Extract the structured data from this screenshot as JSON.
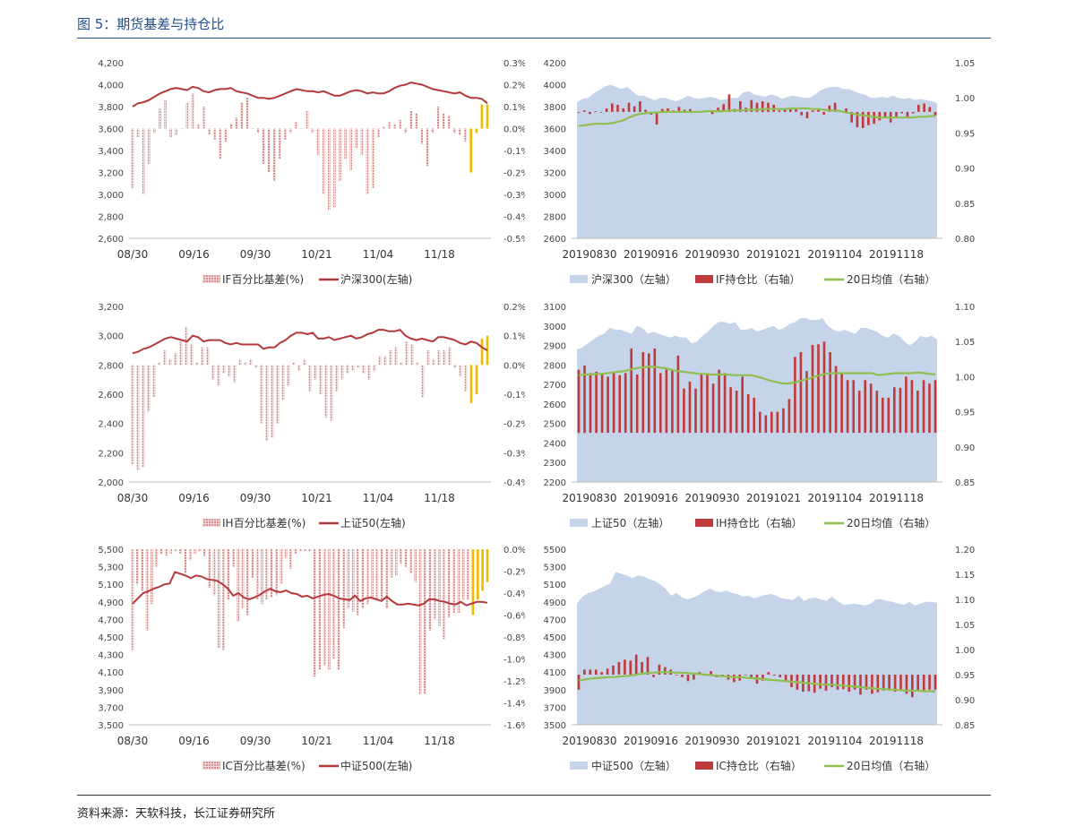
{
  "header": {
    "title": "图 5：期货基差与持仓比"
  },
  "footer": {
    "source": "资料来源：天软科技，长江证券研究所"
  },
  "colors": {
    "basis_bar": "#d98c8c",
    "basis_bar_recent": "#f2b900",
    "index_line": "#b5393a",
    "area": "#c5d4e8",
    "ratio_bar": "#c0393b",
    "ma_line": "#8fbf4f"
  },
  "chart_data": [
    {
      "id": "if-basis",
      "type": "bar+line",
      "x_ticks": [
        "08/30",
        "09/16",
        "09/30",
        "10/21",
        "11/04",
        "11/18"
      ],
      "ylim_left": [
        2600,
        4200
      ],
      "yticks_left": [
        "2,600",
        "2,800",
        "3,000",
        "3,200",
        "3,400",
        "3,600",
        "3,800",
        "4,000",
        "4,200"
      ],
      "ylim_right": [
        -0.5,
        0.3
      ],
      "yticks_right": [
        "-0.5%",
        "-0.4%",
        "-0.3%",
        "-0.2%",
        "-0.1%",
        "0.0%",
        "0.1%",
        "0.2%",
        "0.3%"
      ],
      "legend": [
        "IF百分比基差(%)",
        "沪深300(左轴)"
      ],
      "basis": [
        -0.27,
        -0.04,
        -0.3,
        -0.16,
        -0.02,
        0.09,
        0.13,
        -0.04,
        -0.03,
        0,
        0.12,
        0.16,
        0.02,
        0.1,
        -0.03,
        -0.05,
        -0.14,
        -0.06,
        0.02,
        0.05,
        0.12,
        0.14,
        0,
        -0.02,
        -0.16,
        -0.2,
        -0.24,
        -0.14,
        -0.05,
        -0.02,
        0.03,
        0,
        0.08,
        -0.02,
        -0.12,
        -0.3,
        -0.37,
        -0.36,
        -0.24,
        -0.14,
        -0.19,
        -0.09,
        -0.12,
        -0.3,
        -0.27,
        -0.04,
        0.01,
        0.03,
        0.02,
        0.04,
        -0.02,
        0.08,
        0.07,
        -0.07,
        -0.17,
        -0.02,
        0.1,
        0.07,
        0.06,
        -0.02,
        -0.03,
        -0.06,
        -0.2,
        -0.02,
        0.11,
        0.11
      ],
      "index": [
        3800,
        3830,
        3840,
        3860,
        3890,
        3920,
        3940,
        3960,
        3970,
        3960,
        3950,
        3980,
        3970,
        3940,
        3930,
        3950,
        3960,
        3960,
        3970,
        3940,
        3930,
        3920,
        3900,
        3880,
        3880,
        3870,
        3880,
        3900,
        3920,
        3940,
        3960,
        3950,
        3940,
        3940,
        3930,
        3940,
        3920,
        3900,
        3900,
        3920,
        3940,
        3950,
        3940,
        3920,
        3930,
        3920,
        3920,
        3940,
        3970,
        3990,
        4000,
        4020,
        4010,
        4000,
        3980,
        3960,
        3950,
        3940,
        3930,
        3920,
        3930,
        3900,
        3880,
        3880,
        3870,
        3830
      ]
    },
    {
      "id": "if-ratio",
      "type": "area+bar+line",
      "x_ticks": [
        "20190830",
        "20190916",
        "20190930",
        "20191021",
        "20191104",
        "20191118"
      ],
      "ylim_left": [
        2600,
        4200
      ],
      "yticks_left": [
        "2600",
        "2800",
        "3000",
        "3200",
        "3400",
        "3600",
        "3800",
        "4000",
        "4200"
      ],
      "ylim_right": [
        0.8,
        1.05
      ],
      "yticks_right": [
        "0.80",
        "0.85",
        "0.90",
        "0.95",
        "1.00",
        "1.05"
      ],
      "legend": [
        "沪深300（左轴）",
        "IF持仓比（右轴）",
        "20日均值（右轴）"
      ],
      "baseline": 0.98,
      "area": [
        3840,
        3870,
        3880,
        3920,
        3950,
        3980,
        4000,
        3980,
        3960,
        3980,
        3940,
        3900,
        3900,
        3880,
        3860,
        3880,
        3880,
        3860,
        3850,
        3870,
        3900,
        3880,
        3870,
        3880,
        3890,
        3880,
        3860,
        3870,
        3880,
        3880,
        3930,
        3940,
        3910,
        3900,
        3890,
        3910,
        3900,
        3870,
        3890,
        3900,
        3890,
        3880,
        3880,
        3910,
        3950,
        3970,
        3980,
        3980,
        3960,
        3960,
        3940,
        3920,
        3910,
        3880,
        3880,
        3890,
        3880,
        3900,
        3880,
        3870,
        3880,
        3860,
        3870,
        3860,
        3850,
        3830
      ],
      "ratio": [
        0.98,
        0.982,
        0.977,
        0.981,
        0.979,
        0.985,
        0.992,
        0.99,
        0.985,
        0.993,
        0.988,
        0.995,
        0.983,
        0.976,
        0.962,
        0.984,
        0.985,
        0.982,
        0.987,
        0.983,
        0.984,
        0.979,
        0.981,
        0.982,
        0.977,
        0.986,
        0.991,
        1.005,
        0.984,
        0.995,
        0.986,
        0.997,
        0.993,
        0.995,
        0.993,
        0.99,
        0.982,
        0.983,
        0.985,
        0.984,
        0.975,
        0.971,
        0.982,
        0.984,
        0.976,
        0.989,
        0.993,
        0.982,
        0.985,
        0.965,
        0.958,
        0.957,
        0.961,
        0.963,
        0.968,
        0.971,
        0.965,
        0.973,
        0.978,
        0.971,
        0.978,
        0.99,
        0.992,
        0.987,
        0.975
      ],
      "ma": [
        0.96,
        0.961,
        0.962,
        0.963,
        0.963,
        0.963,
        0.964,
        0.966,
        0.968,
        0.972,
        0.975,
        0.977,
        0.978,
        0.979,
        0.979,
        0.98,
        0.98,
        0.98,
        0.98,
        0.98,
        0.98,
        0.98,
        0.98,
        0.981,
        0.981,
        0.981,
        0.981,
        0.982,
        0.982,
        0.982,
        0.983,
        0.983,
        0.983,
        0.984,
        0.984,
        0.984,
        0.984,
        0.984,
        0.985,
        0.985,
        0.985,
        0.985,
        0.984,
        0.984,
        0.983,
        0.982,
        0.982,
        0.981,
        0.979,
        0.978,
        0.976,
        0.975,
        0.974,
        0.973,
        0.972,
        0.972,
        0.972,
        0.972,
        0.972,
        0.972,
        0.972,
        0.973,
        0.973,
        0.974,
        0.974
      ]
    },
    {
      "id": "ih-basis",
      "type": "bar+line",
      "x_ticks": [
        "08/30",
        "09/16",
        "09/30",
        "10/21",
        "11/04",
        "11/18"
      ],
      "ylim_left": [
        2000,
        3200
      ],
      "yticks_left": [
        "2,000",
        "2,200",
        "2,400",
        "2,600",
        "2,800",
        "3,000",
        "3,200"
      ],
      "ylim_right": [
        -0.4,
        0.2
      ],
      "yticks_right": [
        "-0.4%",
        "-0.3%",
        "-0.2%",
        "-0.1%",
        "0.0%",
        "0.1%",
        "0.2%"
      ],
      "legend": [
        "IH百分比基差(%)",
        "上证50(左轴)"
      ],
      "basis": [
        -0.34,
        -0.36,
        -0.35,
        -0.16,
        -0.11,
        0.01,
        0.05,
        0.02,
        0.04,
        0.08,
        0.13,
        0.07,
        0.01,
        0.06,
        0.06,
        -0.05,
        -0.07,
        -0.03,
        -0.04,
        -0.06,
        0.02,
        0.01,
        0.02,
        -0.01,
        -0.2,
        -0.26,
        -0.25,
        -0.2,
        -0.12,
        -0.07,
        0.01,
        -0.02,
        0.02,
        -0.09,
        -0.05,
        -0.1,
        -0.18,
        -0.19,
        -0.09,
        -0.05,
        -0.03,
        -0.02,
        -0.01,
        -0.03,
        -0.05,
        -0.02,
        0.03,
        0.03,
        0.05,
        0.06,
        0.01,
        0.08,
        0.07,
        0.01,
        -0.11,
        0.05,
        0.02,
        0.05,
        0.05,
        0.06,
        -0.01,
        -0.04,
        -0.09,
        -0.13,
        -0.1,
        0.09,
        0.1
      ],
      "index": [
        2880,
        2890,
        2910,
        2920,
        2940,
        2960,
        2980,
        2990,
        2980,
        2970,
        2960,
        3000,
        2990,
        2960,
        2970,
        2970,
        2970,
        2950,
        2940,
        2950,
        2940,
        2940,
        2940,
        2940,
        2910,
        2920,
        2920,
        2950,
        2970,
        3000,
        3020,
        3020,
        3010,
        3020,
        2980,
        2980,
        2990,
        2970,
        2980,
        2990,
        3000,
        2980,
        2990,
        3010,
        3020,
        3040,
        3040,
        3030,
        3030,
        3040,
        3000,
        2980,
        2970,
        2980,
        2970,
        2960,
        2990,
        2990,
        2980,
        2970,
        2950,
        2940,
        2960,
        2950,
        2920,
        2900
      ]
    },
    {
      "id": "ih-ratio",
      "type": "area+bar+line",
      "x_ticks": [
        "20190830",
        "20190916",
        "20190930",
        "20191021",
        "20191104",
        "20191118"
      ],
      "ylim_left": [
        2200,
        3100
      ],
      "yticks_left": [
        "2200",
        "2300",
        "2400",
        "2500",
        "2600",
        "2700",
        "2800",
        "2900",
        "3000",
        "3100"
      ],
      "ylim_right": [
        0.85,
        1.1
      ],
      "yticks_right": [
        "0.85",
        "0.90",
        "0.95",
        "1.00",
        "1.05",
        "1.10"
      ],
      "legend": [
        "上证50（左轴）",
        "IH持仓比（右轴）",
        "20日均值（右轴）"
      ],
      "baseline": 0.92,
      "area": [
        2880,
        2890,
        2910,
        2930,
        2950,
        2960,
        2990,
        2980,
        2980,
        2970,
        2960,
        3000,
        2990,
        2960,
        2970,
        2960,
        2950,
        2940,
        2950,
        2940,
        2940,
        2910,
        2920,
        2950,
        2970,
        3000,
        3020,
        3020,
        3010,
        3020,
        2980,
        2980,
        2990,
        2970,
        2980,
        2990,
        3000,
        2980,
        2990,
        3010,
        3020,
        3040,
        3040,
        3030,
        3030,
        3040,
        3000,
        2980,
        2970,
        2980,
        2970,
        2960,
        2990,
        2990,
        2980,
        2970,
        2950,
        2940,
        2960,
        2950,
        2920,
        2900,
        2920,
        2950,
        2940,
        2950,
        2930
      ],
      "ratio": [
        1.01,
        1.016,
        1.005,
        1.007,
        1.003,
        1.0,
        1.005,
        1.002,
        1.005,
        1.04,
        1.003,
        1.035,
        1.033,
        1.04,
        1.005,
        1.01,
        1.01,
        1.03,
        0.983,
        0.993,
        0.983,
        1.003,
        1.005,
        0.99,
        1.01,
        1.005,
        0.985,
        0.98,
        1.0,
        0.975,
        0.97,
        0.95,
        0.945,
        0.95,
        0.95,
        0.955,
        0.968,
        1.028,
        1.035,
        1.008,
        1.045,
        1.046,
        1.05,
        1.035,
        1.015,
        1.005,
        0.995,
        0.995,
        0.98,
        0.995,
        0.99,
        0.98,
        0.97,
        0.97,
        0.985,
        0.984,
        1.0,
        0.995,
        0.98,
        0.995,
        0.99,
        0.995
      ],
      "ma": [
        1.002,
        1.003,
        1.003,
        1.004,
        1.004,
        1.005,
        1.006,
        1.007,
        1.008,
        1.01,
        1.012,
        1.013,
        1.014,
        1.014,
        1.013,
        1.012,
        1.01,
        1.008,
        1.007,
        1.006,
        1.005,
        1.004,
        1.004,
        1.003,
        1.003,
        1.003,
        1.003,
        1.002,
        1.002,
        1.002,
        1.002,
        1.0,
        0.998,
        0.995,
        0.993,
        0.991,
        0.99,
        0.991,
        0.993,
        0.995,
        0.997,
        1.0,
        1.002,
        1.004,
        1.005,
        1.005,
        1.005,
        1.005,
        1.005,
        1.005,
        1.005,
        1.005,
        1.002,
        1.003,
        1.004,
        1.005,
        1.005,
        1.005,
        1.005,
        1.006,
        1.005,
        1.004,
        1.003
      ]
    },
    {
      "id": "ic-basis",
      "type": "bar+line",
      "x_ticks": [
        "08/30",
        "09/16",
        "09/30",
        "10/21",
        "11/04",
        "11/18"
      ],
      "ylim_left": [
        3500,
        5500
      ],
      "yticks_left": [
        "3,500",
        "3,700",
        "3,900",
        "4,100",
        "4,300",
        "4,500",
        "4,700",
        "4,900",
        "5,100",
        "5,300",
        "5,500"
      ],
      "ylim_right": [
        -1.6,
        0.0
      ],
      "yticks_right": [
        "-1.6%",
        "-1.4%",
        "-1.2%",
        "-1.0%",
        "-0.8%",
        "-0.6%",
        "-0.4%",
        "-0.2%",
        "0.0%"
      ],
      "legend": [
        "IC百分比基差(%)",
        "中证500(左轴)"
      ],
      "basis": [
        -0.92,
        -0.32,
        -0.38,
        -0.74,
        -0.5,
        -0.16,
        -0.04,
        -0.06,
        -0.04,
        -0.02,
        -0.04,
        -0.22,
        -0.1,
        -0.04,
        -0.02,
        -0.06,
        -0.35,
        -0.42,
        -0.9,
        -0.92,
        -0.46,
        -0.16,
        -0.66,
        -0.54,
        -0.6,
        -0.26,
        -0.46,
        -0.5,
        -0.46,
        -0.44,
        -0.42,
        -0.32,
        -0.08,
        -0.18,
        -0.04,
        -0.02,
        -0.02,
        -0.02,
        -1.16,
        -1.1,
        -1.06,
        -1.1,
        -1.0,
        -1.1,
        -0.72,
        -0.54,
        -0.57,
        -0.6,
        -0.54,
        -0.5,
        -0.46,
        -0.46,
        -0.46,
        -0.54,
        -0.26,
        -0.24,
        -0.13,
        -0.16,
        -0.22,
        -0.3,
        -1.32,
        -1.32,
        -0.74,
        -0.64,
        -0.7,
        -0.82,
        -0.62,
        -0.58,
        -0.58,
        -0.46,
        -0.46,
        -0.6,
        -0.46,
        -0.38,
        -0.3
      ],
      "index": [
        4880,
        4940,
        5000,
        5020,
        5050,
        5070,
        5100,
        5110,
        5240,
        5220,
        5200,
        5170,
        5200,
        5190,
        5160,
        5150,
        5140,
        5100,
        5050,
        4970,
        5000,
        4950,
        4930,
        4950,
        4980,
        5020,
        5050,
        5020,
        5010,
        5030,
        5000,
        4990,
        4960,
        4970,
        4940,
        4960,
        4980,
        4990,
        4970,
        4940,
        4930,
        4920,
        4970,
        4910,
        4940,
        4950,
        4930,
        4910,
        4960,
        4910,
        4870,
        4870,
        4880,
        4870,
        4860,
        4880,
        4930,
        4930,
        4910,
        4900,
        4880,
        4870,
        4900,
        4860,
        4880,
        4900,
        4900,
        4890
      ]
    },
    {
      "id": "ic-ratio",
      "type": "area+bar+line",
      "x_ticks": [
        "20190830",
        "20190916",
        "20190930",
        "20191021",
        "20191104",
        "20191118"
      ],
      "ylim_left": [
        3500,
        5500
      ],
      "yticks_left": [
        "3500",
        "3700",
        "3900",
        "4100",
        "4300",
        "4500",
        "4700",
        "4900",
        "5100",
        "5300",
        "5500"
      ],
      "ylim_right": [
        0.85,
        1.2
      ],
      "yticks_right": [
        "0.85",
        "0.90",
        "0.95",
        "1.00",
        "1.05",
        "1.10",
        "1.15",
        "1.20"
      ],
      "legend": [
        "中证500（左轴）",
        "IC持仓比（右轴）",
        "20日均值（右轴）"
      ],
      "baseline": 0.95,
      "area": [
        4880,
        4960,
        5000,
        5020,
        5050,
        5080,
        5110,
        5240,
        5220,
        5200,
        5170,
        5200,
        5190,
        5160,
        5140,
        5100,
        5050,
        4970,
        5000,
        4950,
        4930,
        4950,
        4980,
        5020,
        5050,
        5020,
        5010,
        5030,
        5000,
        4990,
        4960,
        4970,
        4940,
        4960,
        4980,
        4990,
        4970,
        4940,
        4930,
        4920,
        4970,
        4910,
        4940,
        4950,
        4930,
        4910,
        4960,
        4910,
        4870,
        4870,
        4880,
        4870,
        4860,
        4880,
        4930,
        4930,
        4910,
        4900,
        4880,
        4870,
        4900,
        4860,
        4880,
        4900,
        4900,
        4890
      ],
      "ratio": [
        0.92,
        0.96,
        0.96,
        0.96,
        0.955,
        0.962,
        0.968,
        0.975,
        0.98,
        0.978,
        0.99,
        0.975,
        0.985,
        0.945,
        0.97,
        0.965,
        0.96,
        0.95,
        0.945,
        0.937,
        0.94,
        0.955,
        0.948,
        0.957,
        0.945,
        0.947,
        0.94,
        0.935,
        0.938,
        0.95,
        0.942,
        0.932,
        0.938,
        0.955,
        0.948,
        0.945,
        0.935,
        0.925,
        0.92,
        0.916,
        0.917,
        0.914,
        0.922,
        0.918,
        0.925,
        0.92,
        0.921,
        0.916,
        0.92,
        0.91,
        0.92,
        0.912,
        0.915,
        0.918,
        0.92,
        0.916,
        0.92,
        0.912,
        0.905,
        0.918,
        0.915,
        0.92,
        0.92
      ],
      "ma": [
        0.938,
        0.94,
        0.942,
        0.943,
        0.944,
        0.945,
        0.945,
        0.946,
        0.947,
        0.948,
        0.95,
        0.952,
        0.953,
        0.954,
        0.955,
        0.955,
        0.955,
        0.954,
        0.954,
        0.953,
        0.952,
        0.951,
        0.95,
        0.949,
        0.948,
        0.947,
        0.946,
        0.945,
        0.945,
        0.944,
        0.943,
        0.942,
        0.941,
        0.94,
        0.939,
        0.938,
        0.937,
        0.936,
        0.935,
        0.934,
        0.933,
        0.932,
        0.931,
        0.93,
        0.93,
        0.929,
        0.928,
        0.927,
        0.926,
        0.925,
        0.924,
        0.923,
        0.922,
        0.921,
        0.92,
        0.92,
        0.919,
        0.918,
        0.918,
        0.918,
        0.917,
        0.917,
        0.917
      ]
    }
  ]
}
